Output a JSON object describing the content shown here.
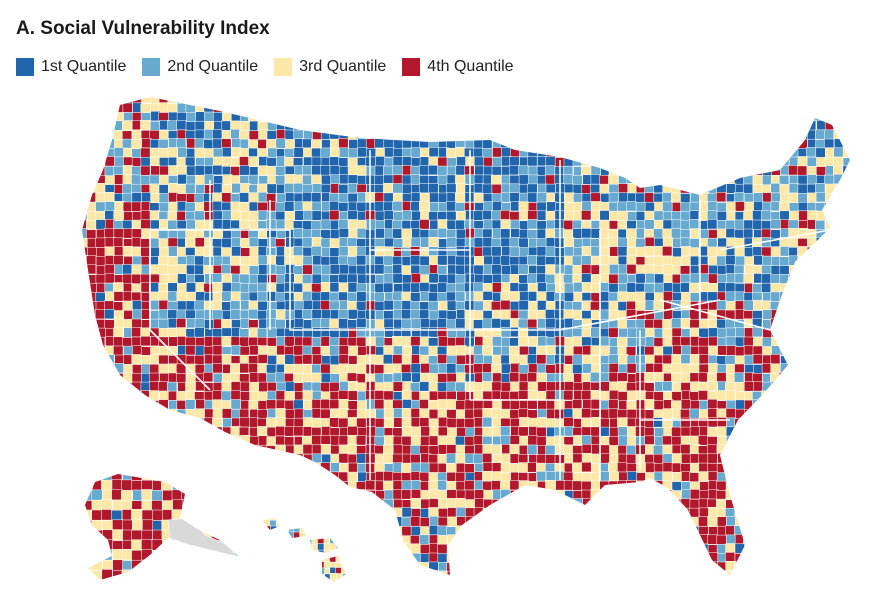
{
  "title": "A. Social Vulnerability Index",
  "legend": [
    {
      "label": "1st Quantile",
      "color": "#2166ac"
    },
    {
      "label": "2nd Quantile",
      "color": "#67a9cf"
    },
    {
      "label": "3rd Quantile",
      "color": "#fde8a8"
    },
    {
      "label": "4th Quantile",
      "color": "#b2182b"
    }
  ],
  "colors": {
    "no_data": "#d9d9d9",
    "border": "#ffffff"
  }
}
